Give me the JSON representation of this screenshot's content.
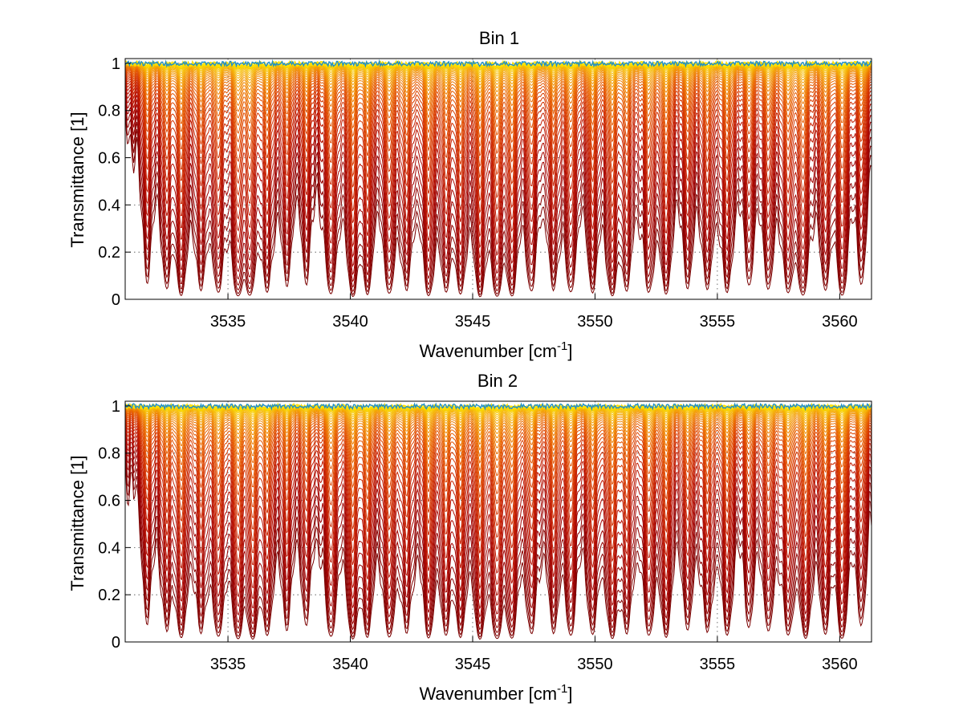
{
  "chart_data": [
    {
      "type": "line",
      "title": "Bin 1",
      "xlabel": "Wavenumber [cm",
      "xlabel_sup": "-1",
      "xlabel_end": "]",
      "ylabel": "Transmittance [1]",
      "xlim": [
        3530.8,
        3561.3
      ],
      "ylim": [
        0,
        1.02
      ],
      "grid": true,
      "xticks": [
        "3535",
        "3540",
        "3545",
        "3550",
        "3555",
        "3560"
      ],
      "xtick_values": [
        3535,
        3540,
        3545,
        3550,
        3555,
        3560
      ],
      "yticks": [
        "0",
        "0.2",
        "0.4",
        "0.6",
        "0.8",
        "1"
      ],
      "ytick_values": [
        0,
        0.2,
        0.4,
        0.6,
        0.8,
        1
      ],
      "absorption_lines": [
        {
          "x": 3531.7,
          "depth": 0.55
        },
        {
          "x": 3532.5,
          "depth": 0.65
        },
        {
          "x": 3533.1,
          "depth": 0.9
        },
        {
          "x": 3533.9,
          "depth": 0.7
        },
        {
          "x": 3534.6,
          "depth": 0.8
        },
        {
          "x": 3535.4,
          "depth": 0.95
        },
        {
          "x": 3535.9,
          "depth": 0.9
        },
        {
          "x": 3536.6,
          "depth": 0.75
        },
        {
          "x": 3537.4,
          "depth": 0.6
        },
        {
          "x": 3538.2,
          "depth": 0.55
        },
        {
          "x": 3539.2,
          "depth": 0.9
        },
        {
          "x": 3540.1,
          "depth": 0.95
        },
        {
          "x": 3540.7,
          "depth": 0.8
        },
        {
          "x": 3541.6,
          "depth": 0.85
        },
        {
          "x": 3542.3,
          "depth": 0.7
        },
        {
          "x": 3543.2,
          "depth": 0.95
        },
        {
          "x": 3543.9,
          "depth": 0.7
        },
        {
          "x": 3544.5,
          "depth": 0.8
        },
        {
          "x": 3545.3,
          "depth": 0.95
        },
        {
          "x": 3546.0,
          "depth": 0.95
        },
        {
          "x": 3546.6,
          "depth": 0.9
        },
        {
          "x": 3547.4,
          "depth": 0.75
        },
        {
          "x": 3548.3,
          "depth": 0.7
        },
        {
          "x": 3549.0,
          "depth": 0.8
        },
        {
          "x": 3549.9,
          "depth": 0.75
        },
        {
          "x": 3550.7,
          "depth": 0.95
        },
        {
          "x": 3551.3,
          "depth": 0.7
        },
        {
          "x": 3552.2,
          "depth": 0.8
        },
        {
          "x": 3552.9,
          "depth": 0.85
        },
        {
          "x": 3553.8,
          "depth": 0.65
        },
        {
          "x": 3554.6,
          "depth": 0.7
        },
        {
          "x": 3555.4,
          "depth": 0.8
        },
        {
          "x": 3556.3,
          "depth": 0.6
        },
        {
          "x": 3557.1,
          "depth": 0.7
        },
        {
          "x": 3557.9,
          "depth": 0.8
        },
        {
          "x": 3558.5,
          "depth": 0.95
        },
        {
          "x": 3559.4,
          "depth": 0.7
        },
        {
          "x": 3560.1,
          "depth": 0.95
        },
        {
          "x": 3560.9,
          "depth": 0.6
        }
      ],
      "series_count": 40,
      "colormap": [
        "#7a0000",
        "#a00000",
        "#c01800",
        "#d83a00",
        "#e86000",
        "#f08a00",
        "#f5b000",
        "#f8d000",
        "#ffe600"
      ],
      "noise_color": "#1f8fc8"
    },
    {
      "type": "line",
      "title": "Bin 2",
      "xlabel": "Wavenumber [cm",
      "xlabel_sup": "-1",
      "xlabel_end": "]",
      "ylabel": "Transmittance [1]",
      "xlim": [
        3530.8,
        3561.3
      ],
      "ylim": [
        0,
        1.02
      ],
      "grid": true,
      "xticks": [
        "3535",
        "3540",
        "3545",
        "3550",
        "3555",
        "3560"
      ],
      "xtick_values": [
        3535,
        3540,
        3545,
        3550,
        3555,
        3560
      ],
      "yticks": [
        "0",
        "0.2",
        "0.4",
        "0.6",
        "0.8",
        "1"
      ],
      "ytick_values": [
        0,
        0.2,
        0.4,
        0.6,
        0.8,
        1
      ],
      "absorption_lines": [
        {
          "x": 3531.7,
          "depth": 0.55
        },
        {
          "x": 3532.5,
          "depth": 0.65
        },
        {
          "x": 3533.1,
          "depth": 0.9
        },
        {
          "x": 3533.9,
          "depth": 0.7
        },
        {
          "x": 3534.6,
          "depth": 0.85
        },
        {
          "x": 3535.4,
          "depth": 0.95
        },
        {
          "x": 3536.0,
          "depth": 0.95
        },
        {
          "x": 3536.6,
          "depth": 0.75
        },
        {
          "x": 3537.4,
          "depth": 0.6
        },
        {
          "x": 3538.2,
          "depth": 0.55
        },
        {
          "x": 3539.2,
          "depth": 0.9
        },
        {
          "x": 3540.1,
          "depth": 0.95
        },
        {
          "x": 3540.7,
          "depth": 0.8
        },
        {
          "x": 3541.6,
          "depth": 0.9
        },
        {
          "x": 3542.3,
          "depth": 0.7
        },
        {
          "x": 3543.2,
          "depth": 0.9
        },
        {
          "x": 3543.9,
          "depth": 0.7
        },
        {
          "x": 3544.5,
          "depth": 0.8
        },
        {
          "x": 3545.3,
          "depth": 0.95
        },
        {
          "x": 3546.0,
          "depth": 0.95
        },
        {
          "x": 3546.6,
          "depth": 0.9
        },
        {
          "x": 3547.4,
          "depth": 0.75
        },
        {
          "x": 3548.3,
          "depth": 0.7
        },
        {
          "x": 3549.0,
          "depth": 0.8
        },
        {
          "x": 3549.9,
          "depth": 0.75
        },
        {
          "x": 3550.7,
          "depth": 0.95
        },
        {
          "x": 3551.3,
          "depth": 0.7
        },
        {
          "x": 3552.2,
          "depth": 0.8
        },
        {
          "x": 3552.9,
          "depth": 0.85
        },
        {
          "x": 3553.8,
          "depth": 0.65
        },
        {
          "x": 3554.6,
          "depth": 0.7
        },
        {
          "x": 3555.4,
          "depth": 0.8
        },
        {
          "x": 3556.3,
          "depth": 0.6
        },
        {
          "x": 3557.1,
          "depth": 0.7
        },
        {
          "x": 3557.9,
          "depth": 0.8
        },
        {
          "x": 3558.6,
          "depth": 0.95
        },
        {
          "x": 3559.4,
          "depth": 0.7
        },
        {
          "x": 3560.1,
          "depth": 0.95
        },
        {
          "x": 3560.9,
          "depth": 0.6
        }
      ],
      "series_count": 40,
      "colormap": [
        "#7a0000",
        "#a00000",
        "#c01800",
        "#d83a00",
        "#e86000",
        "#f08a00",
        "#f5b000",
        "#f8d000",
        "#ffe600"
      ],
      "noise_color": "#1f8fc8"
    }
  ]
}
